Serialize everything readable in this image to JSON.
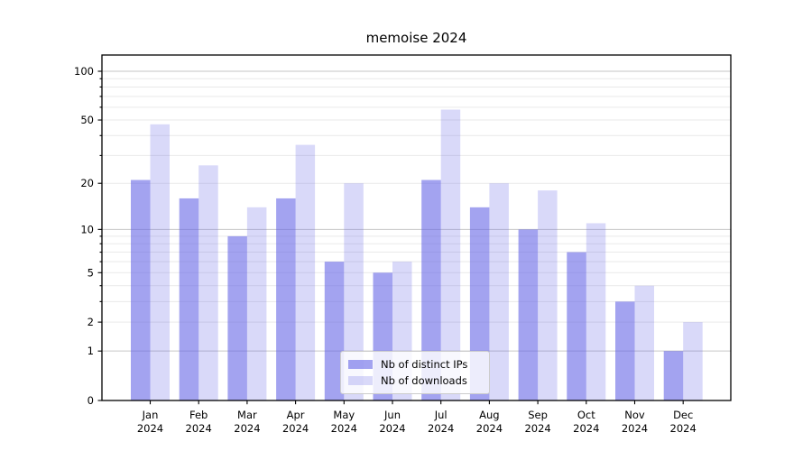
{
  "figure": {
    "kind": "static-matplotlib-style-plot",
    "background": "#ffffff"
  },
  "chart_data": {
    "type": "bar",
    "title": "memoise 2024",
    "categories": [
      "Jan 2024",
      "Feb 2024",
      "Mar 2024",
      "Apr 2024",
      "May 2024",
      "Jun 2024",
      "Jul 2024",
      "Aug 2024",
      "Sep 2024",
      "Oct 2024",
      "Nov 2024",
      "Dec 2024"
    ],
    "series": [
      {
        "name": "Nb of distinct IPs",
        "color": "#6666e6",
        "opacity": 0.6,
        "values": [
          21,
          16,
          9,
          16,
          6,
          5,
          21,
          14,
          10,
          7,
          3,
          1
        ]
      },
      {
        "name": "Nb of downloads",
        "color": "#6666e6",
        "opacity": 0.25,
        "values": [
          47,
          26,
          14,
          35,
          20,
          6,
          58,
          20,
          18,
          11,
          4,
          2
        ]
      }
    ],
    "xlabel": "",
    "ylabel": "",
    "yscale": "log1p",
    "ylim": [
      0,
      120
    ],
    "y_ticks": [
      0,
      1,
      2,
      5,
      10,
      20,
      50,
      100
    ],
    "y_decade_ticks": [
      1,
      10,
      100
    ],
    "y_minor_ticks": [
      3,
      4,
      6,
      7,
      8,
      9,
      30,
      40,
      60,
      70,
      80,
      90
    ],
    "grid": "on",
    "legend": {
      "entries": [
        "Nb of distinct IPs",
        "Nb of downloads"
      ],
      "position": "lower center",
      "frame": true
    }
  },
  "colors": {
    "bar_base": "#6666e6",
    "grid_major": "#c6c6c6",
    "grid_minor": "#e9e9e9",
    "axis_frame": "#000000",
    "tick_text": "#000000",
    "legend_border": "#cccccc"
  }
}
